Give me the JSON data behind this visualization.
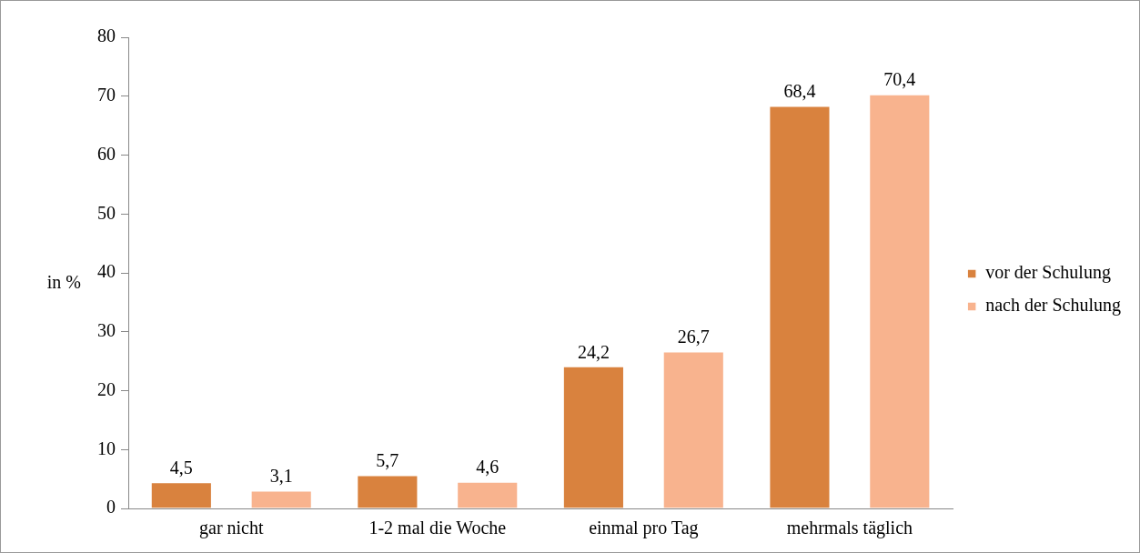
{
  "chart_data": {
    "type": "bar",
    "ylabel": "in %",
    "categories": [
      "gar nicht",
      "1-2 mal die Woche",
      "einmal pro Tag",
      "mehrmals täglich"
    ],
    "series": [
      {
        "name": "vor der Schulung",
        "color": "#d9823e",
        "values": [
          4.5,
          5.7,
          24.2,
          68.4
        ],
        "value_labels": [
          "4,5",
          "5,7",
          "24,2",
          "68,4"
        ]
      },
      {
        "name": "nach der Schulung",
        "color": "#f8b38e",
        "values": [
          3.1,
          4.6,
          26.7,
          70.4
        ],
        "value_labels": [
          "3,1",
          "4,6",
          "26,7",
          "70,4"
        ]
      }
    ],
    "ylim": [
      0,
      80
    ],
    "yticks": [
      0,
      10,
      20,
      30,
      40,
      50,
      60,
      70,
      80
    ],
    "grid": false,
    "legend": "right"
  }
}
